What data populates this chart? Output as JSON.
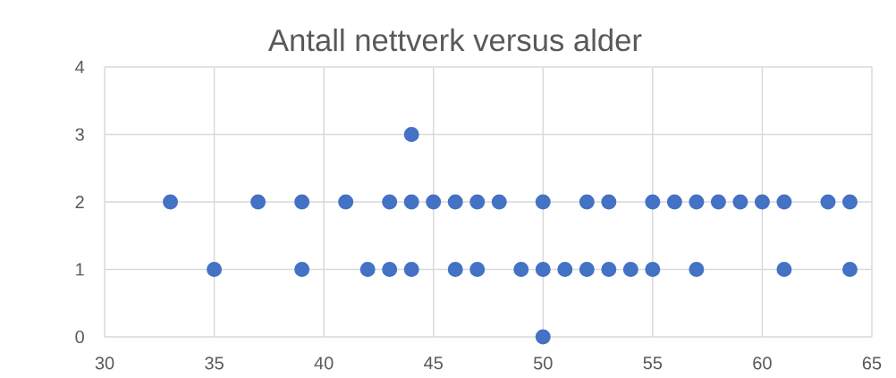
{
  "chart_data": {
    "type": "scatter",
    "title": "Antall nettverk versus alder",
    "x": [
      33,
      37,
      39,
      41,
      43,
      44,
      45,
      46,
      47,
      48,
      50,
      52,
      53,
      55,
      56,
      57,
      58,
      59,
      60,
      61,
      63,
      64,
      44,
      35,
      39,
      42,
      43,
      44,
      46,
      47,
      49,
      50,
      51,
      52,
      53,
      54,
      55,
      57,
      61,
      64,
      50
    ],
    "values": [
      2,
      2,
      2,
      2,
      2,
      2,
      2,
      2,
      2,
      2,
      2,
      2,
      2,
      2,
      2,
      2,
      2,
      2,
      2,
      2,
      2,
      2,
      3,
      1,
      1,
      1,
      1,
      1,
      1,
      1,
      1,
      1,
      1,
      1,
      1,
      1,
      1,
      1,
      1,
      1,
      0
    ],
    "color": "#4472c4",
    "marker": "circle",
    "grid": true,
    "xlim": [
      30,
      65
    ],
    "xticks": [
      30,
      35,
      40,
      45,
      50,
      55,
      60,
      65
    ],
    "ylim": [
      0,
      4
    ],
    "yticks": [
      0,
      1,
      2,
      3,
      4
    ]
  }
}
